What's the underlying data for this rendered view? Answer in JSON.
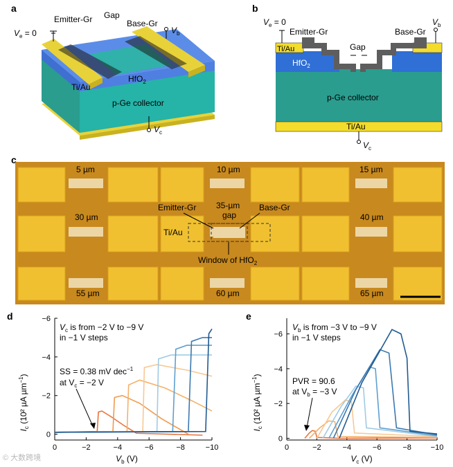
{
  "panels": {
    "a": {
      "letter": "a",
      "ve": "V",
      "ve_sub": "e",
      "ve_val": " = 0",
      "emitter": "Emitter-Gr",
      "gap": "Gap",
      "base": "Base-Gr",
      "vb": "V",
      "vb_sub": "b",
      "hfo2": "HfO",
      "hfo2_sub": "2",
      "tiau": "Ti/Au",
      "collector": "p-Ge collector",
      "vc": "V",
      "vc_sub": "c"
    },
    "b": {
      "letter": "b",
      "ve": "V",
      "ve_sub": "e",
      "ve_val": " = 0",
      "emitter": "Emitter-Gr",
      "base": "Base-Gr",
      "vb": "V",
      "vb_sub": "b",
      "tiau_top": "Ti/Au",
      "gap": "Gap",
      "hfo2": "HfO",
      "hfo2_sub": "2",
      "collector": "p-Ge collector",
      "tiau_bottom": "Ti/Au",
      "vc": "V",
      "vc_sub": "c"
    },
    "c": {
      "letter": "c",
      "gaps_row1": [
        "5 µm",
        "10 µm",
        "15 µm"
      ],
      "gaps_row2": [
        "30 µm",
        "40 µm"
      ],
      "gaps_row3": [
        "55 µm",
        "60 µm",
        "65 µm"
      ],
      "emitter": "Emitter-Gr",
      "center_gap_line1": "35-µm",
      "center_gap_line2": "gap",
      "base": "Base-Gr",
      "tiau": "Ti/Au",
      "window_prefix": "Window of HfO",
      "window_sub": "2"
    },
    "d": {
      "letter": "d",
      "note_line1_pre": "V",
      "note_line1_sub": "c",
      "note_line1_post": " is from −2 V to −9 V",
      "note_line2": "in −1 V steps",
      "ss_line1": "SS = 0.38 mV dec",
      "ss_sup": "−1",
      "ss_line2_pre": "at V",
      "ss_line2_sub": "c",
      "ss_line2_post": " = −2 V",
      "ylabel_pre": "I",
      "ylabel_sub": "c",
      "ylabel_post": " (10² µA µm",
      "ylabel_sup": "−1",
      "ylabel_end": ")",
      "xlabel_pre": "V",
      "xlabel_sub": "b",
      "xlabel_post": " (V)"
    },
    "e": {
      "letter": "e",
      "note_line1_pre": "V",
      "note_line1_sub": "b",
      "note_line1_post": " is from −3 V to −9 V",
      "note_line2": "in −1 V steps",
      "pvr_line1": "PVR = 90.6",
      "pvr_line2_pre": "at V",
      "pvr_line2_sub": "b",
      "pvr_line2_post": " = −3 V",
      "ylabel_pre": "I",
      "ylabel_sub": "c",
      "ylabel_post": " (10² µA µm",
      "ylabel_sup": "−1",
      "ylabel_end": ")",
      "xlabel_pre": "V",
      "xlabel_sub": "c",
      "xlabel_post": " (V)"
    }
  },
  "watermark": "© 大数跨境",
  "chart_data": [
    {
      "panel": "d",
      "type": "line",
      "xlabel": "Vb (V)",
      "ylabel": "Ic (10² µA µm−1)",
      "xlim": [
        0,
        -10
      ],
      "ylim": [
        0.3,
        -6
      ],
      "x_ticks": [
        0,
        -2,
        -4,
        -6,
        -8,
        -10
      ],
      "y_ticks": [
        0,
        -2,
        -4,
        -6
      ],
      "series": [
        {
          "color": "#e8733a",
          "values": [
            [
              0,
              -0.1
            ],
            [
              -2.7,
              -0.14
            ],
            [
              -2.78,
              -1.15
            ],
            [
              -3.0,
              -1.2
            ],
            [
              -3.6,
              -0.9
            ],
            [
              -4.4,
              -0.45
            ],
            [
              -5.2,
              -0.05
            ],
            [
              -9.4,
              0.05
            ]
          ]
        },
        {
          "color": "#f19a4c",
          "values": [
            [
              0,
              -0.1
            ],
            [
              -3.7,
              -0.14
            ],
            [
              -3.8,
              -1.9
            ],
            [
              -4.3,
              -2.0
            ],
            [
              -5.4,
              -1.6
            ],
            [
              -6.8,
              -0.8
            ],
            [
              -8.5,
              0.0
            ]
          ]
        },
        {
          "color": "#f5b06a",
          "values": [
            [
              0,
              -0.1
            ],
            [
              -4.6,
              -0.14
            ],
            [
              -4.7,
              -2.55
            ],
            [
              -5.4,
              -2.8
            ],
            [
              -7.0,
              -2.4
            ],
            [
              -8.8,
              -1.7
            ],
            [
              -10,
              -1.2
            ]
          ]
        },
        {
          "color": "#f7c894",
          "values": [
            [
              0,
              -0.1
            ],
            [
              -5.6,
              -0.14
            ],
            [
              -5.7,
              -3.45
            ],
            [
              -6.5,
              -3.6
            ],
            [
              -8.5,
              -3.3
            ],
            [
              -10,
              -3.0
            ]
          ]
        },
        {
          "color": "#9fcbe5",
          "values": [
            [
              0,
              -0.1
            ],
            [
              -6.5,
              -0.14
            ],
            [
              -6.6,
              -3.9
            ],
            [
              -7.4,
              -4.1
            ],
            [
              -10,
              -4.1
            ]
          ]
        },
        {
          "color": "#5f9fce",
          "values": [
            [
              0,
              -0.1
            ],
            [
              -7.5,
              -0.14
            ],
            [
              -7.7,
              -4.4
            ],
            [
              -8.4,
              -4.6
            ],
            [
              -10,
              -4.6
            ]
          ]
        },
        {
          "color": "#3a78b0",
          "values": [
            [
              0,
              -0.1
            ],
            [
              -8.5,
              -0.14
            ],
            [
              -8.7,
              -4.8
            ],
            [
              -9.4,
              -5.0
            ],
            [
              -10,
              -5.0
            ]
          ]
        },
        {
          "color": "#205a91",
          "values": [
            [
              0,
              -0.1
            ],
            [
              -9.6,
              -0.14
            ],
            [
              -9.8,
              -5.2
            ],
            [
              -10,
              -5.45
            ]
          ]
        }
      ],
      "annotations": [
        "Vc is from −2 V to −9 V",
        "in −1 V steps",
        "SS = 0.38 mV dec−1",
        "at Vc = −2 V"
      ]
    },
    {
      "panel": "e",
      "type": "line",
      "xlabel": "Vc (V)",
      "ylabel": "Ic (10² µA µm−1)",
      "xlim": [
        0,
        -10
      ],
      "ylim": [
        0.1,
        -6.9
      ],
      "x_ticks": [
        0,
        -2,
        -4,
        -6,
        -8,
        -10
      ],
      "y_ticks": [
        0,
        -2,
        -4,
        -6
      ],
      "series": [
        {
          "color": "#e8733a",
          "values": [
            [
              -1.2,
              0
            ],
            [
              -1.5,
              -0.3
            ],
            [
              -1.7,
              -0.45
            ],
            [
              -1.9,
              -0.4
            ],
            [
              -2.0,
              -0.05
            ],
            [
              -3.5,
              0.0
            ],
            [
              -10,
              -0.02
            ]
          ]
        },
        {
          "color": "#f5b06a",
          "values": [
            [
              -1.5,
              0
            ],
            [
              -2.2,
              -0.6
            ],
            [
              -2.8,
              -1.0
            ],
            [
              -3.2,
              -0.95
            ],
            [
              -3.4,
              -0.1
            ],
            [
              -10,
              -0.05
            ]
          ]
        },
        {
          "color": "#f7c894",
          "values": [
            [
              -2.0,
              0
            ],
            [
              -3.0,
              -1.5
            ],
            [
              -3.9,
              -2.2
            ],
            [
              -4.3,
              -2.1
            ],
            [
              -4.5,
              -0.3
            ],
            [
              -10,
              -0.1
            ]
          ]
        },
        {
          "color": "#9fcbe5",
          "values": [
            [
              -2.4,
              0
            ],
            [
              -3.6,
              -1.8
            ],
            [
              -4.6,
              -3.0
            ],
            [
              -5.1,
              -2.9
            ],
            [
              -5.3,
              -0.6
            ],
            [
              -10,
              -0.1
            ]
          ]
        },
        {
          "color": "#5f9fce",
          "values": [
            [
              -2.8,
              0
            ],
            [
              -4.3,
              -2.4
            ],
            [
              -5.5,
              -4.1
            ],
            [
              -5.9,
              -4.0
            ],
            [
              -6.2,
              -0.6
            ],
            [
              -10,
              -0.15
            ]
          ]
        },
        {
          "color": "#3a78b0",
          "values": [
            [
              -3.1,
              0
            ],
            [
              -4.6,
              -2.8
            ],
            [
              -6.2,
              -5.1
            ],
            [
              -6.8,
              -4.9
            ],
            [
              -7.3,
              -0.6
            ],
            [
              -10,
              -0.2
            ]
          ]
        },
        {
          "color": "#205a91",
          "values": [
            [
              -3.5,
              0
            ],
            [
              -5.0,
              -3.2
            ],
            [
              -7.0,
              -6.25
            ],
            [
              -7.6,
              -6.0
            ],
            [
              -8.0,
              -4.6
            ],
            [
              -8.2,
              -0.4
            ],
            [
              -10,
              -0.25
            ]
          ]
        }
      ],
      "annotations": [
        "Vb is from −3 V to −9 V",
        "in −1 V steps",
        "PVR = 90.6",
        "at Vb = −3 V"
      ]
    }
  ]
}
